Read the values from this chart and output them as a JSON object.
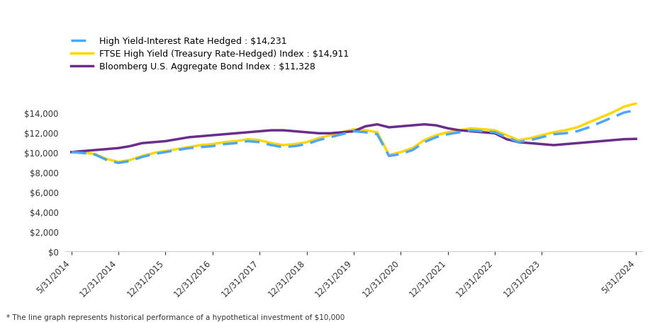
{
  "series": {
    "high_yield_hedged": {
      "label": "High Yield-Interest Rate Hedged : $14,231",
      "color": "#4DA6FF",
      "linewidth": 2.5,
      "values": [
        10000,
        9900,
        9750,
        9200,
        8900,
        9100,
        9500,
        9800,
        10000,
        10200,
        10400,
        10500,
        10600,
        10800,
        10900,
        11100,
        11000,
        10700,
        10500,
        10600,
        10800,
        11200,
        11500,
        11800,
        12100,
        12000,
        11800,
        9600,
        9800,
        10200,
        11000,
        11500,
        11800,
        12000,
        12200,
        12100,
        12000,
        11500,
        11000,
        11200,
        11500,
        11800,
        11900,
        12100,
        12500,
        13000,
        13500,
        14000,
        14231
      ]
    },
    "ftse_high_yield": {
      "label": "FTSE High Yield (Treasury Rate-Hedged) Index : $14,911",
      "color": "#FFD700",
      "linewidth": 2.5,
      "values": [
        10000,
        9950,
        9800,
        9300,
        9000,
        9200,
        9600,
        9900,
        10100,
        10300,
        10500,
        10700,
        10800,
        11000,
        11100,
        11300,
        11200,
        10900,
        10700,
        10800,
        11000,
        11400,
        11700,
        12000,
        12300,
        12200,
        12000,
        9700,
        10000,
        10400,
        11200,
        11700,
        12000,
        12200,
        12400,
        12300,
        12200,
        11700,
        11200,
        11400,
        11700,
        12000,
        12200,
        12500,
        13000,
        13500,
        14000,
        14600,
        14911
      ]
    },
    "bloomberg_agg": {
      "label": "Bloomberg U.S. Aggregate Bond Index : $11,328",
      "color": "#6B2D8B",
      "linewidth": 2.5,
      "values": [
        10000,
        10100,
        10200,
        10300,
        10400,
        10600,
        10900,
        11000,
        11100,
        11300,
        11500,
        11600,
        11700,
        11800,
        11900,
        12000,
        12100,
        12200,
        12200,
        12100,
        12000,
        11900,
        11900,
        12000,
        12100,
        12600,
        12800,
        12500,
        12600,
        12700,
        12800,
        12700,
        12400,
        12200,
        12100,
        12000,
        11900,
        11300,
        11000,
        10900,
        10800,
        10700,
        10800,
        10900,
        11000,
        11100,
        11200,
        11300,
        11328
      ]
    }
  },
  "x_labels": [
    "5/31/2014",
    "12/31/2014",
    "12/31/2015",
    "12/31/2016",
    "12/31/2017",
    "12/31/2018",
    "12/31/2019",
    "12/31/2020",
    "12/31/2021",
    "12/31/2022",
    "12/31/2023",
    "5/31/2024"
  ],
  "x_label_indices": [
    0,
    4,
    8,
    12,
    16,
    20,
    24,
    28,
    32,
    36,
    40,
    48
  ],
  "n_points": 49,
  "ylim": [
    0,
    15000
  ],
  "yticks": [
    0,
    2000,
    4000,
    6000,
    8000,
    10000,
    12000,
    14000
  ],
  "ytick_labels": [
    "$0",
    "$2,000",
    "$4,000",
    "$6,000",
    "$8,000",
    "$10,000",
    "$12,000",
    "$14,000"
  ],
  "footnote": "* The line graph represents historical performance of a hypothetical investment of $10,000",
  "background_color": "#FFFFFF",
  "legend_fontsize": 9,
  "tick_fontsize": 8.5
}
